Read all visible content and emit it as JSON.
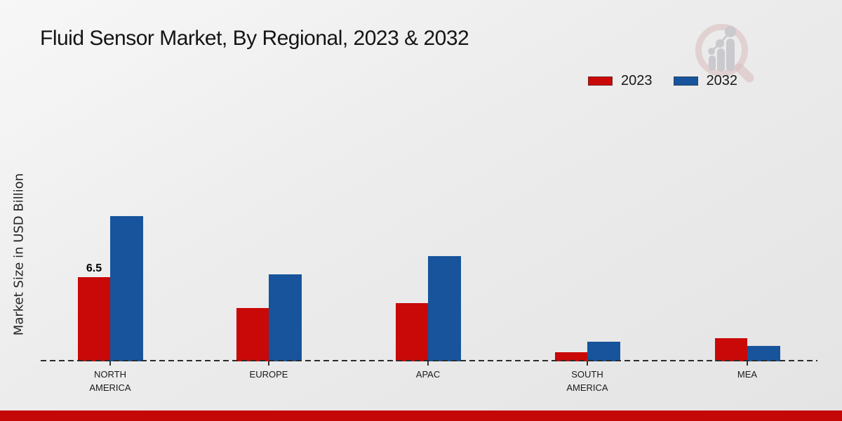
{
  "title": "Fluid Sensor Market, By Regional, 2023 & 2032",
  "y_axis_label": "Market Size in USD Billion",
  "colors": {
    "series_2023": "#c90808",
    "series_2032": "#17549c",
    "footer_bar": "#c40707",
    "baseline": "#2c2c2c",
    "background": "#ececec"
  },
  "legend": {
    "position": "top-right",
    "items": [
      {
        "label": "2023",
        "color": "#c90808"
      },
      {
        "label": "2032",
        "color": "#17549c"
      }
    ]
  },
  "chart_data": {
    "type": "bar",
    "title": "Fluid Sensor Market, By Regional, 2023 & 2032",
    "ylabel": "Market Size in USD Billion",
    "xlabel": "",
    "grid": false,
    "baseline_style": "dashed",
    "legend_position": "top-right",
    "categories": [
      "NORTH\nAMERICA",
      "EUROPE",
      "APAC",
      "SOUTH\nAMERICA",
      "MEA"
    ],
    "series": [
      {
        "name": "2023",
        "color": "#c90808",
        "values": [
          6.5,
          4.1,
          4.5,
          0.7,
          1.8
        ]
      },
      {
        "name": "2032",
        "color": "#17549c",
        "values": [
          11.2,
          6.7,
          8.1,
          1.5,
          1.2
        ]
      }
    ],
    "annotations": [
      {
        "series": 0,
        "category": 0,
        "text": "6.5"
      }
    ],
    "ylim": [
      0,
      12
    ]
  },
  "logo": {
    "name": "magnifier-bar-chart-logo"
  }
}
